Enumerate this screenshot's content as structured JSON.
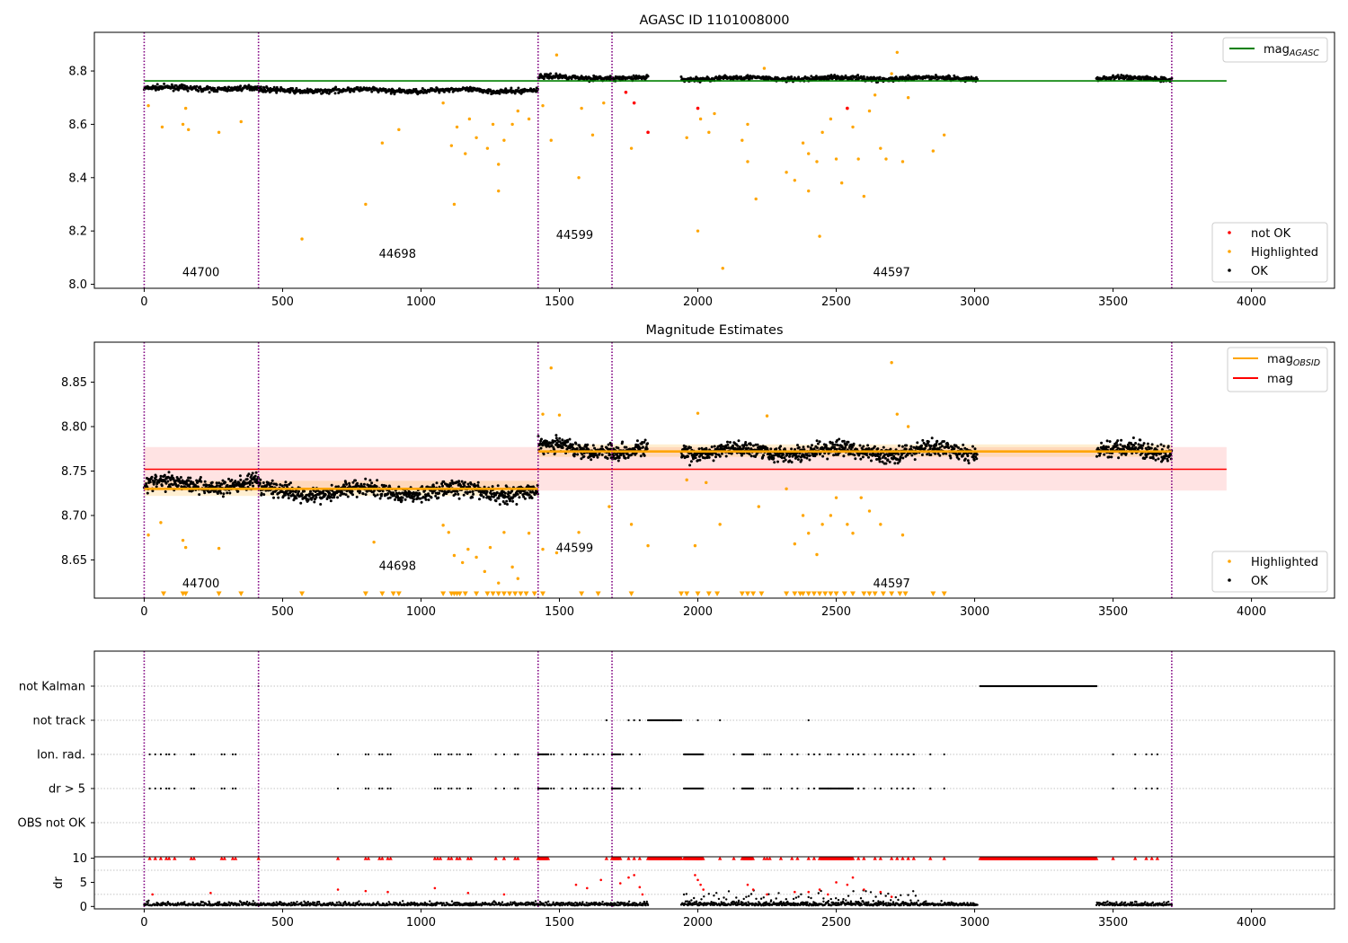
{
  "chart_data": [
    {
      "type": "scatter",
      "title": "AGASC ID 1101008000",
      "xlim": [
        -180,
        4300
      ],
      "ylim": [
        7.985,
        8.945
      ],
      "xticks": [
        0,
        500,
        1000,
        1500,
        2000,
        2500,
        3000,
        3500,
        4000
      ],
      "yticks": [
        8.0,
        8.2,
        8.4,
        8.6,
        8.8
      ],
      "ytick_labels": [
        "8.0",
        "8.2",
        "8.4",
        "8.6",
        "8.8"
      ],
      "grid": false,
      "obs_boundaries": [
        0,
        413,
        1423,
        1690,
        3712
      ],
      "obs_labels": [
        {
          "text": "44700",
          "x": 205,
          "y": 8.03
        },
        {
          "text": "44698",
          "x": 915,
          "y": 8.1
        },
        {
          "text": "44599",
          "x": 1555,
          "y": 8.17
        },
        {
          "text": "44597",
          "x": 2700,
          "y": 8.03
        }
      ],
      "segments": [
        [
          0,
          1423
        ],
        [
          1423,
          1820
        ],
        [
          1940,
          3010
        ],
        [
          3440,
          3712
        ]
      ],
      "baseline": [
        {
          "x0": 0,
          "x1": 413,
          "y": 8.735
        },
        {
          "x0": 413,
          "x1": 1423,
          "y": 8.727
        },
        {
          "x0": 1423,
          "x1": 1690,
          "y": 8.776
        },
        {
          "x0": 1690,
          "x1": 3712,
          "y": 8.772
        }
      ],
      "agasc_line": {
        "name": "mag$_{AGASC}$",
        "legend": "mag",
        "subscript": "AGASC",
        "y": 8.763,
        "x0": 0,
        "x1": 3910,
        "color": "#008000"
      },
      "highlighted_points": {
        "x": [
          15,
          65,
          140,
          150,
          160,
          270,
          350,
          800,
          860,
          920,
          1080,
          1110,
          1120,
          1160,
          1175,
          1200,
          1240,
          1260,
          1280,
          1300,
          1330,
          1350,
          1390,
          1440,
          1470,
          1490,
          1570,
          1620,
          1660,
          1760,
          1960,
          2000,
          2010,
          2040,
          2060,
          2160,
          2180,
          2210,
          2240,
          2320,
          2350,
          2380,
          2400,
          2430,
          2450,
          2480,
          2500,
          2520,
          2540,
          2560,
          2580,
          2600,
          2620,
          2640,
          2660,
          2680,
          2700,
          2720,
          2740,
          2760,
          2850,
          2890,
          570,
          1130,
          1280,
          1580,
          2090,
          2440,
          2180,
          2400
        ],
        "y": [
          8.67,
          8.59,
          8.6,
          8.66,
          8.58,
          8.57,
          8.61,
          8.3,
          8.53,
          8.58,
          8.68,
          8.52,
          8.3,
          8.49,
          8.62,
          8.55,
          8.51,
          8.6,
          8.35,
          8.54,
          8.6,
          8.65,
          8.62,
          8.67,
          8.54,
          8.86,
          8.4,
          8.56,
          8.68,
          8.51,
          8.55,
          8.2,
          8.62,
          8.57,
          8.64,
          8.54,
          8.46,
          8.32,
          8.81,
          8.42,
          8.39,
          8.53,
          8.35,
          8.46,
          8.57,
          8.62,
          8.47,
          8.38,
          8.66,
          8.59,
          8.47,
          8.33,
          8.65,
          8.71,
          8.51,
          8.47,
          8.79,
          8.87,
          8.46,
          8.7,
          8.5,
          8.56,
          8.17,
          8.59,
          8.45,
          8.66,
          8.06,
          8.18,
          8.6,
          8.49
        ],
        "color": "#FFA500"
      },
      "notok_points": {
        "x": [
          1740,
          1770,
          1820,
          2000,
          2540
        ],
        "y": [
          8.72,
          8.68,
          8.57,
          8.66,
          8.66
        ],
        "color": "#FF0000"
      },
      "legends": [
        {
          "position": "upper-right",
          "entries": [
            {
              "label": "mag",
              "subscript": "AGASC",
              "type": "line",
              "color": "#008000"
            }
          ]
        },
        {
          "position": "lower-right",
          "entries": [
            {
              "label": "not OK",
              "type": "marker",
              "color": "#FF0000"
            },
            {
              "label": "Highlighted",
              "type": "marker",
              "color": "#FFA500"
            },
            {
              "label": "OK",
              "type": "marker",
              "color": "#000000"
            }
          ]
        }
      ]
    },
    {
      "type": "scatter",
      "title": "Magnitude Estimates",
      "xlim": [
        -180,
        4300
      ],
      "ylim": [
        8.607,
        8.895
      ],
      "xticks": [
        0,
        500,
        1000,
        1500,
        2000,
        2500,
        3000,
        3500,
        4000
      ],
      "yticks": [
        8.65,
        8.7,
        8.75,
        8.8,
        8.85
      ],
      "ytick_labels": [
        "8.65",
        "8.70",
        "8.75",
        "8.80",
        "8.85"
      ],
      "grid": false,
      "obs_boundaries": [
        0,
        413,
        1423,
        1690,
        3712
      ],
      "obs_labels": [
        {
          "text": "44700",
          "x": 205,
          "y": 8.619
        },
        {
          "text": "44698",
          "x": 915,
          "y": 8.639
        },
        {
          "text": "44599",
          "x": 1555,
          "y": 8.659
        },
        {
          "text": "44597",
          "x": 2700,
          "y": 8.619
        }
      ],
      "segments": [
        [
          0,
          1423
        ],
        [
          1423,
          1820
        ],
        [
          1940,
          3010
        ],
        [
          3440,
          3712
        ]
      ],
      "baseline": [
        {
          "x0": 0,
          "x1": 413,
          "y": 8.735
        },
        {
          "x0": 413,
          "x1": 1423,
          "y": 8.727
        },
        {
          "x0": 1423,
          "x1": 1690,
          "y": 8.776
        },
        {
          "x0": 1690,
          "x1": 3712,
          "y": 8.772
        }
      ],
      "mag_line": {
        "y": 8.752,
        "band": [
          8.728,
          8.777
        ],
        "x0": 0,
        "x1": 3910,
        "color": "#FF0000"
      },
      "mag_obsid": [
        {
          "x0": 0,
          "x1": 1423,
          "y": 8.73,
          "band": [
            8.722,
            8.739
          ]
        },
        {
          "x0": 1423,
          "x1": 3712,
          "y": 8.772,
          "band": [
            8.766,
            8.78
          ]
        }
      ],
      "highlighted_points": {
        "x": [
          15,
          60,
          140,
          150,
          270,
          830,
          1080,
          1100,
          1120,
          1150,
          1170,
          1200,
          1230,
          1250,
          1280,
          1300,
          1330,
          1350,
          1390,
          1440,
          1470,
          1490,
          1570,
          1680,
          1760,
          1820,
          1960,
          1990,
          2030,
          2080,
          2220,
          2320,
          2350,
          2380,
          2400,
          2430,
          2450,
          2480,
          2500,
          2540,
          2560,
          2590,
          2620,
          2660,
          2700,
          2720,
          2740,
          2760,
          1440,
          1500,
          2000,
          2250
        ],
        "y": [
          8.678,
          8.692,
          8.672,
          8.664,
          8.663,
          8.67,
          8.689,
          8.681,
          8.655,
          8.647,
          8.662,
          8.653,
          8.637,
          8.664,
          8.624,
          8.681,
          8.642,
          8.629,
          8.68,
          8.662,
          8.866,
          8.658,
          8.681,
          8.71,
          8.69,
          8.666,
          8.74,
          8.666,
          8.737,
          8.69,
          8.71,
          8.73,
          8.668,
          8.7,
          8.68,
          8.656,
          8.69,
          8.7,
          8.72,
          8.69,
          8.68,
          8.72,
          8.705,
          8.69,
          8.872,
          8.814,
          8.678,
          8.8,
          8.814,
          8.813,
          8.815,
          8.812
        ],
        "color": "#FFA500"
      },
      "clipped_markers": {
        "x": [
          70,
          140,
          150,
          270,
          350,
          570,
          800,
          860,
          900,
          920,
          1080,
          1110,
          1120,
          1130,
          1140,
          1160,
          1200,
          1240,
          1260,
          1280,
          1300,
          1320,
          1340,
          1360,
          1380,
          1410,
          1440,
          1580,
          1640,
          1760,
          1940,
          1960,
          2000,
          2040,
          2070,
          2160,
          2180,
          2200,
          2230,
          2320,
          2350,
          2370,
          2380,
          2400,
          2420,
          2440,
          2460,
          2480,
          2500,
          2530,
          2560,
          2600,
          2620,
          2640,
          2670,
          2700,
          2730,
          2750,
          2850,
          2890
        ],
        "y": 8.612,
        "color": "#FFA500"
      },
      "legends": [
        {
          "position": "upper-right",
          "entries": [
            {
              "label": "mag",
              "subscript": "OBSID",
              "type": "line",
              "color": "#FFA500"
            },
            {
              "label": "mag",
              "type": "line",
              "color": "#FF0000"
            }
          ]
        },
        {
          "position": "lower-right",
          "entries": [
            {
              "label": "Highlighted",
              "type": "marker",
              "color": "#FFA500"
            },
            {
              "label": "OK",
              "type": "marker",
              "color": "#000000"
            }
          ]
        }
      ]
    },
    {
      "type": "scatter",
      "xlim": [
        -180,
        4300
      ],
      "categories": [
        "not Kalman",
        "not track",
        "Ion. rad.",
        "dr > 5",
        "OBS not OK"
      ],
      "grid": true,
      "obs_boundaries": [
        0,
        413,
        1423,
        1690,
        3712
      ],
      "not_kalman": {
        "x": [
          413
        ],
        "ranges": [
          [
            3020,
            3440
          ]
        ]
      },
      "not_track": {
        "x": [
          1670,
          1750,
          1770,
          1790,
          1910,
          2000,
          2080,
          2400
        ],
        "ranges": [
          [
            1820,
            1940
          ]
        ]
      },
      "ion_rad": {
        "x": [
          20,
          40,
          60,
          80,
          90,
          110,
          170,
          180,
          280,
          290,
          320,
          330,
          700,
          800,
          810,
          850,
          860,
          880,
          890,
          1050,
          1060,
          1070,
          1100,
          1110,
          1130,
          1140,
          1170,
          1180,
          1270,
          1300,
          1340,
          1350,
          1440,
          1450,
          1460,
          1470,
          1480,
          1510,
          1540,
          1560,
          1590,
          1600,
          1620,
          1640,
          1660,
          1700,
          1730,
          1760,
          1790,
          2130,
          2200,
          2240,
          2250,
          2260,
          2300,
          2340,
          2360,
          2400,
          2420,
          2440,
          2470,
          2480,
          2510,
          2540,
          2560,
          2580,
          2600,
          2640,
          2660,
          2700,
          2720,
          2740,
          2760,
          2780,
          2840,
          2890,
          3500,
          3580,
          3620,
          3640,
          3660
        ],
        "ranges": [
          [
            1423,
            1460
          ],
          [
            1690,
            1720
          ],
          [
            1950,
            2020
          ],
          [
            2160,
            2200
          ]
        ]
      },
      "dr5": {
        "x": [
          20,
          40,
          60,
          80,
          90,
          110,
          170,
          180,
          280,
          290,
          320,
          330,
          700,
          800,
          810,
          850,
          860,
          880,
          890,
          1050,
          1060,
          1070,
          1100,
          1110,
          1130,
          1140,
          1170,
          1180,
          1270,
          1300,
          1340,
          1350,
          1440,
          1450,
          1460,
          1470,
          1480,
          1510,
          1540,
          1560,
          1590,
          1600,
          1620,
          1640,
          1660,
          1700,
          1730,
          1760,
          1790,
          2130,
          2200,
          2240,
          2250,
          2260,
          2300,
          2340,
          2360,
          2400,
          2420,
          2440,
          2470,
          2480,
          2510,
          2540,
          2560,
          2580,
          2600,
          2640,
          2660,
          2700,
          2720,
          2740,
          2760,
          2780,
          2840,
          2890,
          3500,
          3580,
          3620,
          3640,
          3660
        ],
        "ranges": [
          [
            1423,
            1460
          ],
          [
            1690,
            1720
          ],
          [
            1950,
            2020
          ],
          [
            2160,
            2200
          ],
          [
            2440,
            2560
          ]
        ]
      }
    },
    {
      "type": "scatter",
      "ylabel": "dr",
      "xlim": [
        -180,
        4300
      ],
      "ylim": [
        -0.5,
        10.3
      ],
      "xticks": [
        0,
        500,
        1000,
        1500,
        2000,
        2500,
        3000,
        3500,
        4000
      ],
      "yticks": [
        0,
        5,
        10
      ],
      "ytick_labels": [
        "0",
        "5",
        "10"
      ],
      "grid": true,
      "obs_boundaries": [
        0,
        413,
        1423,
        1690,
        3712
      ],
      "segments": [
        [
          0,
          1423
        ],
        [
          1423,
          1820
        ],
        [
          1940,
          3010
        ],
        [
          3440,
          3712
        ]
      ],
      "elevated_points": {
        "x": [
          30,
          240,
          700,
          800,
          880,
          1050,
          1170,
          1300,
          1560,
          1600,
          1650,
          1720,
          1750,
          1770,
          1790,
          1800,
          1990,
          2000,
          2010,
          2020,
          2180,
          2200,
          2250,
          2350,
          2400,
          2440,
          2470,
          2500,
          2540,
          2560,
          2600,
          2660,
          2700
        ],
        "y": [
          2.5,
          2.8,
          3.5,
          3.2,
          3.0,
          3.8,
          2.8,
          2.5,
          4.5,
          3.8,
          5.5,
          4.8,
          6.0,
          6.5,
          4.0,
          2.5,
          6.5,
          5.5,
          4.5,
          3.5,
          4.5,
          3.5,
          2.5,
          3.0,
          3.0,
          3.5,
          2.5,
          5.0,
          4.5,
          6.0,
          3.5,
          3.0,
          2.0
        ],
        "color": "#FF0000"
      },
      "clipped_markers": {
        "x": [
          20,
          40,
          60,
          80,
          90,
          110,
          170,
          180,
          280,
          290,
          320,
          330,
          413,
          700,
          800,
          810,
          850,
          860,
          880,
          890,
          1050,
          1060,
          1070,
          1100,
          1110,
          1130,
          1140,
          1170,
          1180,
          1270,
          1300,
          1340,
          1350,
          1670,
          1750,
          1770,
          1790,
          2000,
          2080,
          2130,
          2240,
          2250,
          2260,
          2300,
          2340,
          2360,
          2400,
          2420,
          2580,
          2600,
          2640,
          2660,
          2700,
          2720,
          2740,
          2760,
          2780,
          2840,
          2890,
          3500,
          3580,
          3620,
          3640,
          3660
        ],
        "ranges": [
          [
            1423,
            1460
          ],
          [
            1690,
            1720
          ],
          [
            1820,
            1940
          ],
          [
            1950,
            2020
          ],
          [
            2160,
            2200
          ],
          [
            2440,
            2560
          ],
          [
            3020,
            3440
          ]
        ],
        "y": 10,
        "color": "#FF0000"
      }
    }
  ]
}
